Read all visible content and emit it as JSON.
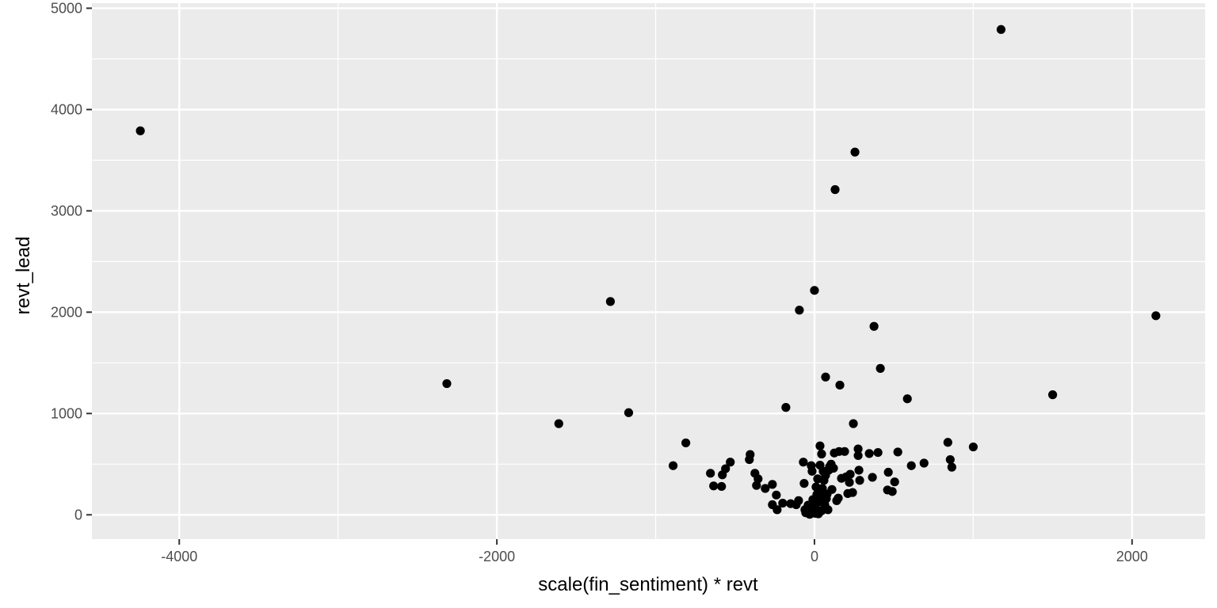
{
  "chart_data": {
    "type": "scatter",
    "xlabel": "scale(fin_sentiment) * revt",
    "ylabel": "revt_lead",
    "xlim": [
      -4550,
      2460
    ],
    "ylim": [
      -240,
      5050
    ],
    "x_ticks": [
      -4000,
      -2000,
      0,
      2000
    ],
    "x_tick_labels": [
      "-4000",
      "-2000",
      "0",
      "2000"
    ],
    "y_ticks": [
      0,
      1000,
      2000,
      3000,
      4000,
      5000
    ],
    "y_tick_labels": [
      "0",
      "1000",
      "2000",
      "3000",
      "4000",
      "5000"
    ],
    "grid": true,
    "background": "#ebebeb",
    "grid_color": "#ffffff",
    "point_color": "#000000",
    "points": [
      [
        -4245,
        3790
      ],
      [
        -2315,
        1295
      ],
      [
        -1285,
        2105
      ],
      [
        -1610,
        900
      ],
      [
        -1170,
        1008
      ],
      [
        -890,
        485
      ],
      [
        -810,
        710
      ],
      [
        -655,
        410
      ],
      [
        -635,
        285
      ],
      [
        -585,
        280
      ],
      [
        -580,
        395
      ],
      [
        -560,
        455
      ],
      [
        -530,
        520
      ],
      [
        -410,
        545
      ],
      [
        -405,
        595
      ],
      [
        -375,
        410
      ],
      [
        -365,
        290
      ],
      [
        -355,
        355
      ],
      [
        -310,
        260
      ],
      [
        -265,
        300
      ],
      [
        -265,
        100
      ],
      [
        -240,
        195
      ],
      [
        -235,
        50
      ],
      [
        -200,
        115
      ],
      [
        -180,
        1060
      ],
      [
        -150,
        110
      ],
      [
        -115,
        100
      ],
      [
        -100,
        140
      ],
      [
        -95,
        2020
      ],
      [
        -70,
        520
      ],
      [
        -65,
        310
      ],
      [
        -60,
        50
      ],
      [
        -55,
        20
      ],
      [
        -40,
        95
      ],
      [
        -30,
        5
      ],
      [
        -20,
        485
      ],
      [
        -15,
        30
      ],
      [
        -15,
        430
      ],
      [
        -10,
        150
      ],
      [
        0,
        2215
      ],
      [
        0,
        80
      ],
      [
        5,
        15
      ],
      [
        10,
        275
      ],
      [
        15,
        200
      ],
      [
        15,
        120
      ],
      [
        20,
        45
      ],
      [
        20,
        355
      ],
      [
        25,
        10
      ],
      [
        30,
        190
      ],
      [
        35,
        680
      ],
      [
        35,
        490
      ],
      [
        40,
        130
      ],
      [
        45,
        40
      ],
      [
        45,
        600
      ],
      [
        50,
        260
      ],
      [
        55,
        430
      ],
      [
        60,
        340
      ],
      [
        65,
        100
      ],
      [
        70,
        1360
      ],
      [
        70,
        390
      ],
      [
        75,
        160
      ],
      [
        80,
        205
      ],
      [
        85,
        50
      ],
      [
        90,
        440
      ],
      [
        95,
        475
      ],
      [
        105,
        500
      ],
      [
        110,
        250
      ],
      [
        120,
        460
      ],
      [
        125,
        610
      ],
      [
        130,
        3210
      ],
      [
        140,
        140
      ],
      [
        150,
        165
      ],
      [
        155,
        625
      ],
      [
        160,
        1280
      ],
      [
        170,
        360
      ],
      [
        190,
        625
      ],
      [
        200,
        375
      ],
      [
        210,
        210
      ],
      [
        220,
        320
      ],
      [
        225,
        400
      ],
      [
        240,
        220
      ],
      [
        245,
        900
      ],
      [
        255,
        3580
      ],
      [
        275,
        650
      ],
      [
        275,
        585
      ],
      [
        280,
        440
      ],
      [
        285,
        340
      ],
      [
        345,
        605
      ],
      [
        365,
        370
      ],
      [
        375,
        1860
      ],
      [
        400,
        615
      ],
      [
        415,
        1445
      ],
      [
        460,
        245
      ],
      [
        465,
        420
      ],
      [
        490,
        230
      ],
      [
        505,
        325
      ],
      [
        525,
        620
      ],
      [
        585,
        1145
      ],
      [
        610,
        485
      ],
      [
        690,
        510
      ],
      [
        840,
        715
      ],
      [
        855,
        545
      ],
      [
        865,
        470
      ],
      [
        1000,
        670
      ],
      [
        1175,
        4790
      ],
      [
        1500,
        1185
      ],
      [
        2150,
        1965
      ]
    ]
  }
}
